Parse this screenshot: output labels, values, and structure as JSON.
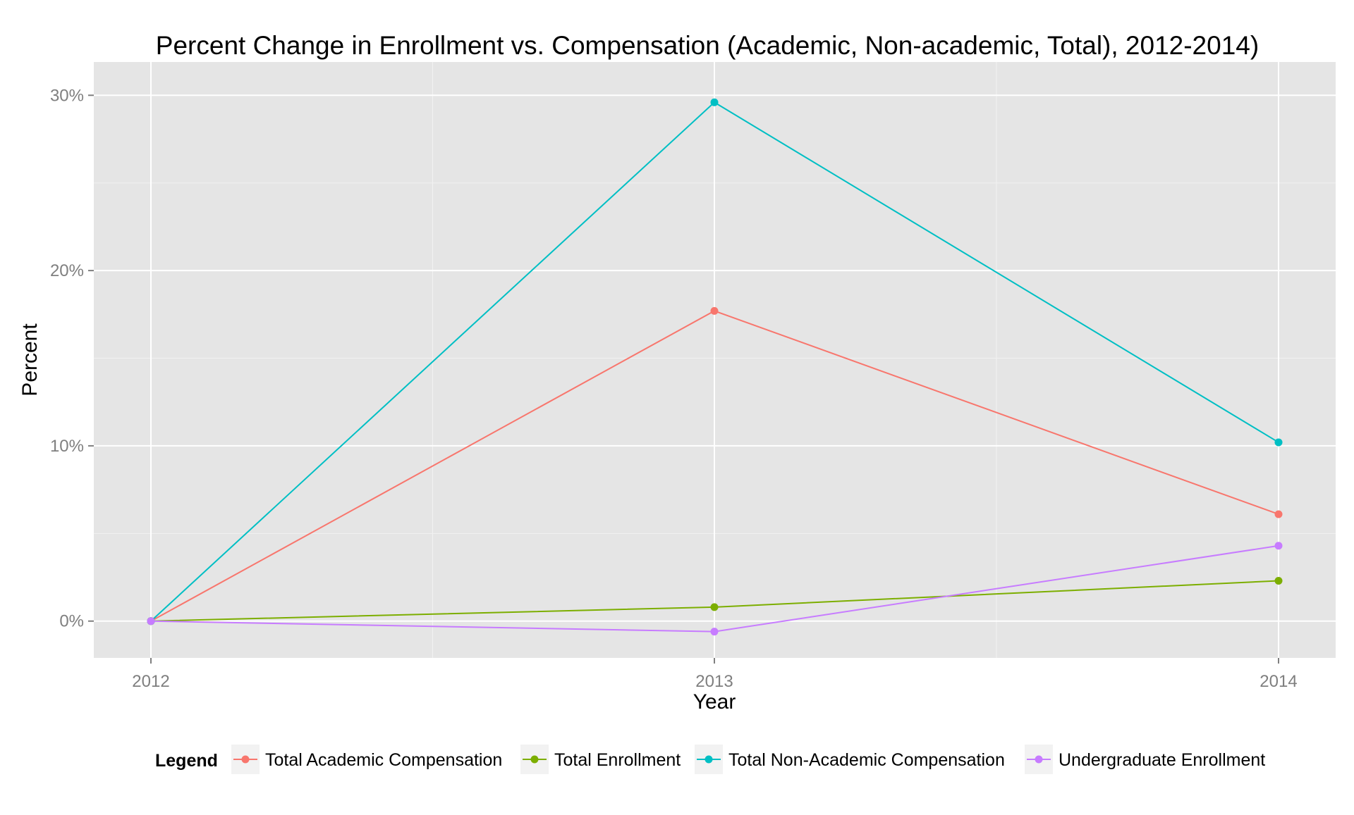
{
  "chart_data": {
    "type": "line",
    "title": "Percent Change in Enrollment vs. Compensation (Academic, Non-academic, Total), 2012-2014)",
    "xlabel": "Year",
    "ylabel": "Percent",
    "x": [
      "2012",
      "2013",
      "2014"
    ],
    "y_ticks": [
      0,
      10,
      20,
      30
    ],
    "y_tick_labels": [
      "0%",
      "10%",
      "20%",
      "30%"
    ],
    "ylim": [
      -2.1,
      31.9
    ],
    "grid": true,
    "legend_title": "Legend",
    "legend_position": "bottom",
    "series": [
      {
        "name": "Total Academic Compensation",
        "color": "#F8766D",
        "values": [
          0,
          17.7,
          6.1
        ]
      },
      {
        "name": "Total Enrollment",
        "color": "#7CAE00",
        "values": [
          0,
          0.8,
          2.3
        ]
      },
      {
        "name": "Total Non-Academic Compensation",
        "color": "#00BFC4",
        "values": [
          0,
          29.6,
          10.2
        ]
      },
      {
        "name": "Undergraduate Enrollment",
        "color": "#C77CFF",
        "values": [
          0,
          -0.6,
          4.3
        ]
      }
    ]
  }
}
